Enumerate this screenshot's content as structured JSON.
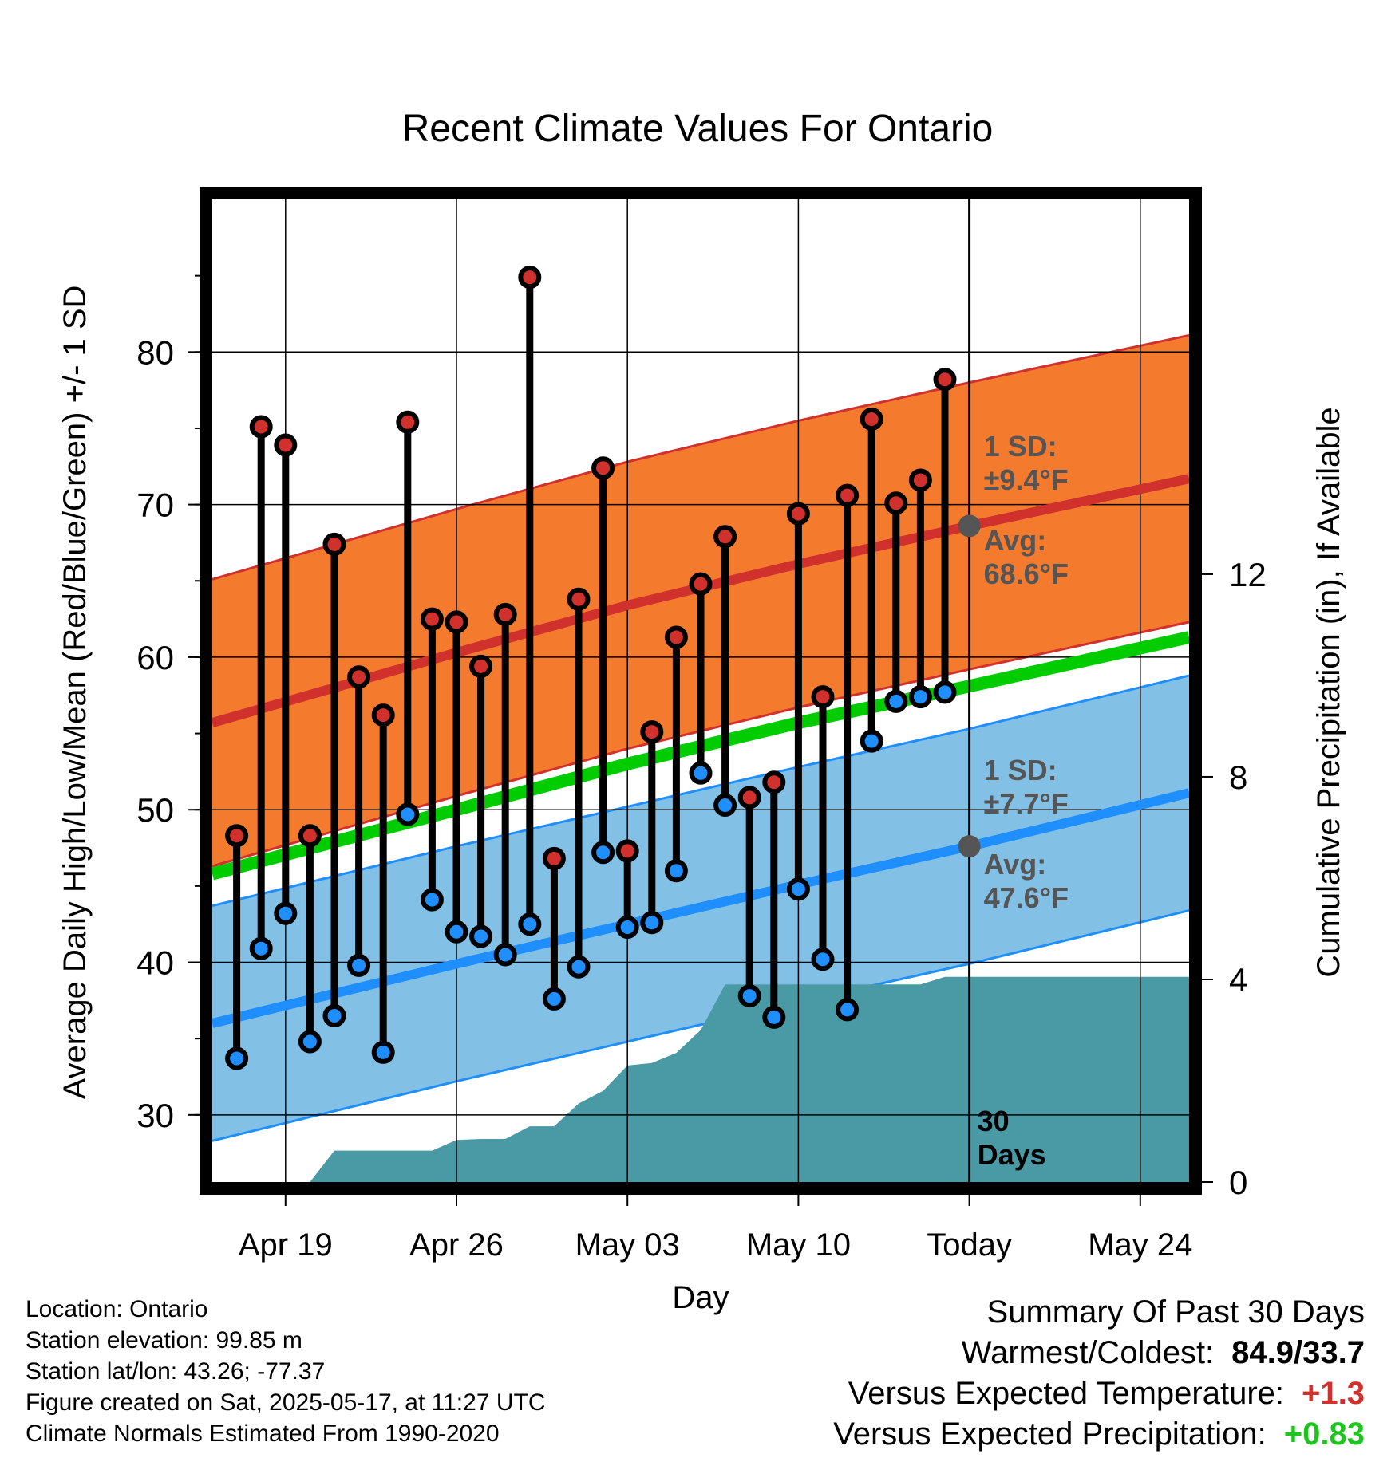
{
  "chart_data": {
    "type": "line",
    "title": "Recent Climate Values For Ontario",
    "xlabel": "Day",
    "ylabel": "Average Daily High/Low/Mean (Red/Blue/Green) +/- 1 SD",
    "y2label": "Cumulative Precipitation (in), If Available",
    "x_tick_labels": [
      "Apr 19",
      "Apr 26",
      "May 03",
      "May 10",
      "Today",
      "May 24"
    ],
    "x_tick_dates": [
      "2025-04-19",
      "2025-04-26",
      "2025-05-03",
      "2025-05-10",
      "2025-05-17",
      "2025-05-24"
    ],
    "xlim": [
      "2025-04-16",
      "2025-05-26"
    ],
    "ylim": [
      25.6,
      90
    ],
    "y_ticks": [
      30,
      40,
      50,
      60,
      70,
      80
    ],
    "y2lim": [
      0,
      19.4
    ],
    "y2_ticks": [
      0,
      4,
      8,
      12
    ],
    "grid": true,
    "normals": {
      "dates": [
        "2025-04-16",
        "2025-04-26",
        "2025-05-03",
        "2025-05-10",
        "2025-05-17",
        "2025-05-26"
      ],
      "avg_high": [
        55.7,
        60.3,
        63.4,
        66.1,
        68.6,
        71.7
      ],
      "avg_low": [
        36.0,
        39.9,
        42.5,
        45.1,
        47.6,
        51.1
      ],
      "avg_mean": [
        45.8,
        50.0,
        53.0,
        55.7,
        58.1,
        61.3
      ],
      "high_sd": 9.4,
      "low_sd": 7.7
    },
    "annotations": {
      "high_sd_label": "1 SD:",
      "high_sd_value": "±9.4°F",
      "high_avg_label": "Avg:",
      "high_avg_value": "68.6°F",
      "low_sd_label": "1 SD:",
      "low_sd_value": "±7.7°F",
      "low_avg_label": "Avg:",
      "low_avg_value": "47.6°F",
      "days_label_1": "30",
      "days_label_2": "Days"
    },
    "series": [
      {
        "name": "High",
        "dates": [
          "2025-04-17",
          "2025-04-18",
          "2025-04-19",
          "2025-04-20",
          "2025-04-21",
          "2025-04-22",
          "2025-04-23",
          "2025-04-24",
          "2025-04-25",
          "2025-04-26",
          "2025-04-27",
          "2025-04-28",
          "2025-04-29",
          "2025-04-30",
          "2025-05-01",
          "2025-05-02",
          "2025-05-03",
          "2025-05-04",
          "2025-05-05",
          "2025-05-06",
          "2025-05-07",
          "2025-05-08",
          "2025-05-09",
          "2025-05-10",
          "2025-05-11",
          "2025-05-12",
          "2025-05-13",
          "2025-05-14",
          "2025-05-15",
          "2025-05-16"
        ],
        "values": [
          48.3,
          75.1,
          73.9,
          48.3,
          67.4,
          58.7,
          56.2,
          75.4,
          62.5,
          62.3,
          59.4,
          62.8,
          84.9,
          46.8,
          63.8,
          72.4,
          47.3,
          55.1,
          61.3,
          64.8,
          67.9,
          50.8,
          51.8,
          69.4,
          57.4,
          70.6,
          75.6,
          70.1,
          71.6,
          78.2
        ]
      },
      {
        "name": "Low",
        "dates": [
          "2025-04-17",
          "2025-04-18",
          "2025-04-19",
          "2025-04-20",
          "2025-04-21",
          "2025-04-22",
          "2025-04-23",
          "2025-04-24",
          "2025-04-25",
          "2025-04-26",
          "2025-04-27",
          "2025-04-28",
          "2025-04-29",
          "2025-04-30",
          "2025-05-01",
          "2025-05-02",
          "2025-05-03",
          "2025-05-04",
          "2025-05-05",
          "2025-05-06",
          "2025-05-07",
          "2025-05-08",
          "2025-05-09",
          "2025-05-10",
          "2025-05-11",
          "2025-05-12",
          "2025-05-13",
          "2025-05-14",
          "2025-05-15",
          "2025-05-16"
        ],
        "values": [
          33.7,
          40.9,
          43.2,
          34.8,
          36.5,
          39.8,
          34.1,
          49.7,
          44.1,
          42.0,
          41.7,
          40.5,
          42.5,
          37.6,
          39.7,
          47.2,
          42.3,
          42.6,
          46.0,
          52.4,
          50.3,
          37.8,
          36.4,
          44.8,
          40.2,
          36.9,
          54.5,
          57.1,
          57.4,
          57.7
        ]
      }
    ],
    "precipitation": {
      "dates": [
        "2025-04-16",
        "2025-04-17",
        "2025-04-18",
        "2025-04-19",
        "2025-04-20",
        "2025-04-21",
        "2025-04-22",
        "2025-04-23",
        "2025-04-24",
        "2025-04-25",
        "2025-04-26",
        "2025-04-27",
        "2025-04-28",
        "2025-04-29",
        "2025-04-30",
        "2025-05-01",
        "2025-05-02",
        "2025-05-03",
        "2025-05-04",
        "2025-05-05",
        "2025-05-06",
        "2025-05-07",
        "2025-05-08",
        "2025-05-09",
        "2025-05-10",
        "2025-05-11",
        "2025-05-12",
        "2025-05-13",
        "2025-05-14",
        "2025-05-15",
        "2025-05-16",
        "2025-05-17",
        "2025-05-26"
      ],
      "values": [
        0,
        0,
        0,
        0,
        0,
        0.62,
        0.62,
        0.62,
        0.62,
        0.62,
        0.83,
        0.85,
        0.85,
        1.1,
        1.1,
        1.55,
        1.8,
        2.3,
        2.35,
        2.55,
        3.0,
        3.9,
        3.9,
        3.9,
        3.9,
        3.9,
        3.9,
        3.9,
        3.9,
        3.9,
        4.05,
        4.05,
        4.05
      ]
    },
    "colors": {
      "high": "#d0312d",
      "low": "#1f8fff",
      "mean": "#00cc00",
      "high_band": "#f47a2e",
      "low_band": "#83c0e6",
      "precip": "#4a9aa5",
      "annotation_text": "#555555"
    }
  },
  "footer": {
    "location": "Location: Ontario",
    "elevation": "Station elevation: 99.85 m",
    "latlon": "Station lat/lon: 43.26; -77.37",
    "created": "Figure created on Sat, 2025-05-17, at 11:27 UTC",
    "normals": "Climate Normals Estimated From 1990-2020"
  },
  "summary": {
    "heading": "Summary Of Past 30 Days",
    "warmest_label": "Warmest/Coldest:",
    "warmest_value": "84.9/33.7",
    "temp_label": "Versus Expected Temperature:",
    "temp_value": "+1.3",
    "precip_label": "Versus Expected Precipitation:",
    "precip_value": "+0.83"
  }
}
